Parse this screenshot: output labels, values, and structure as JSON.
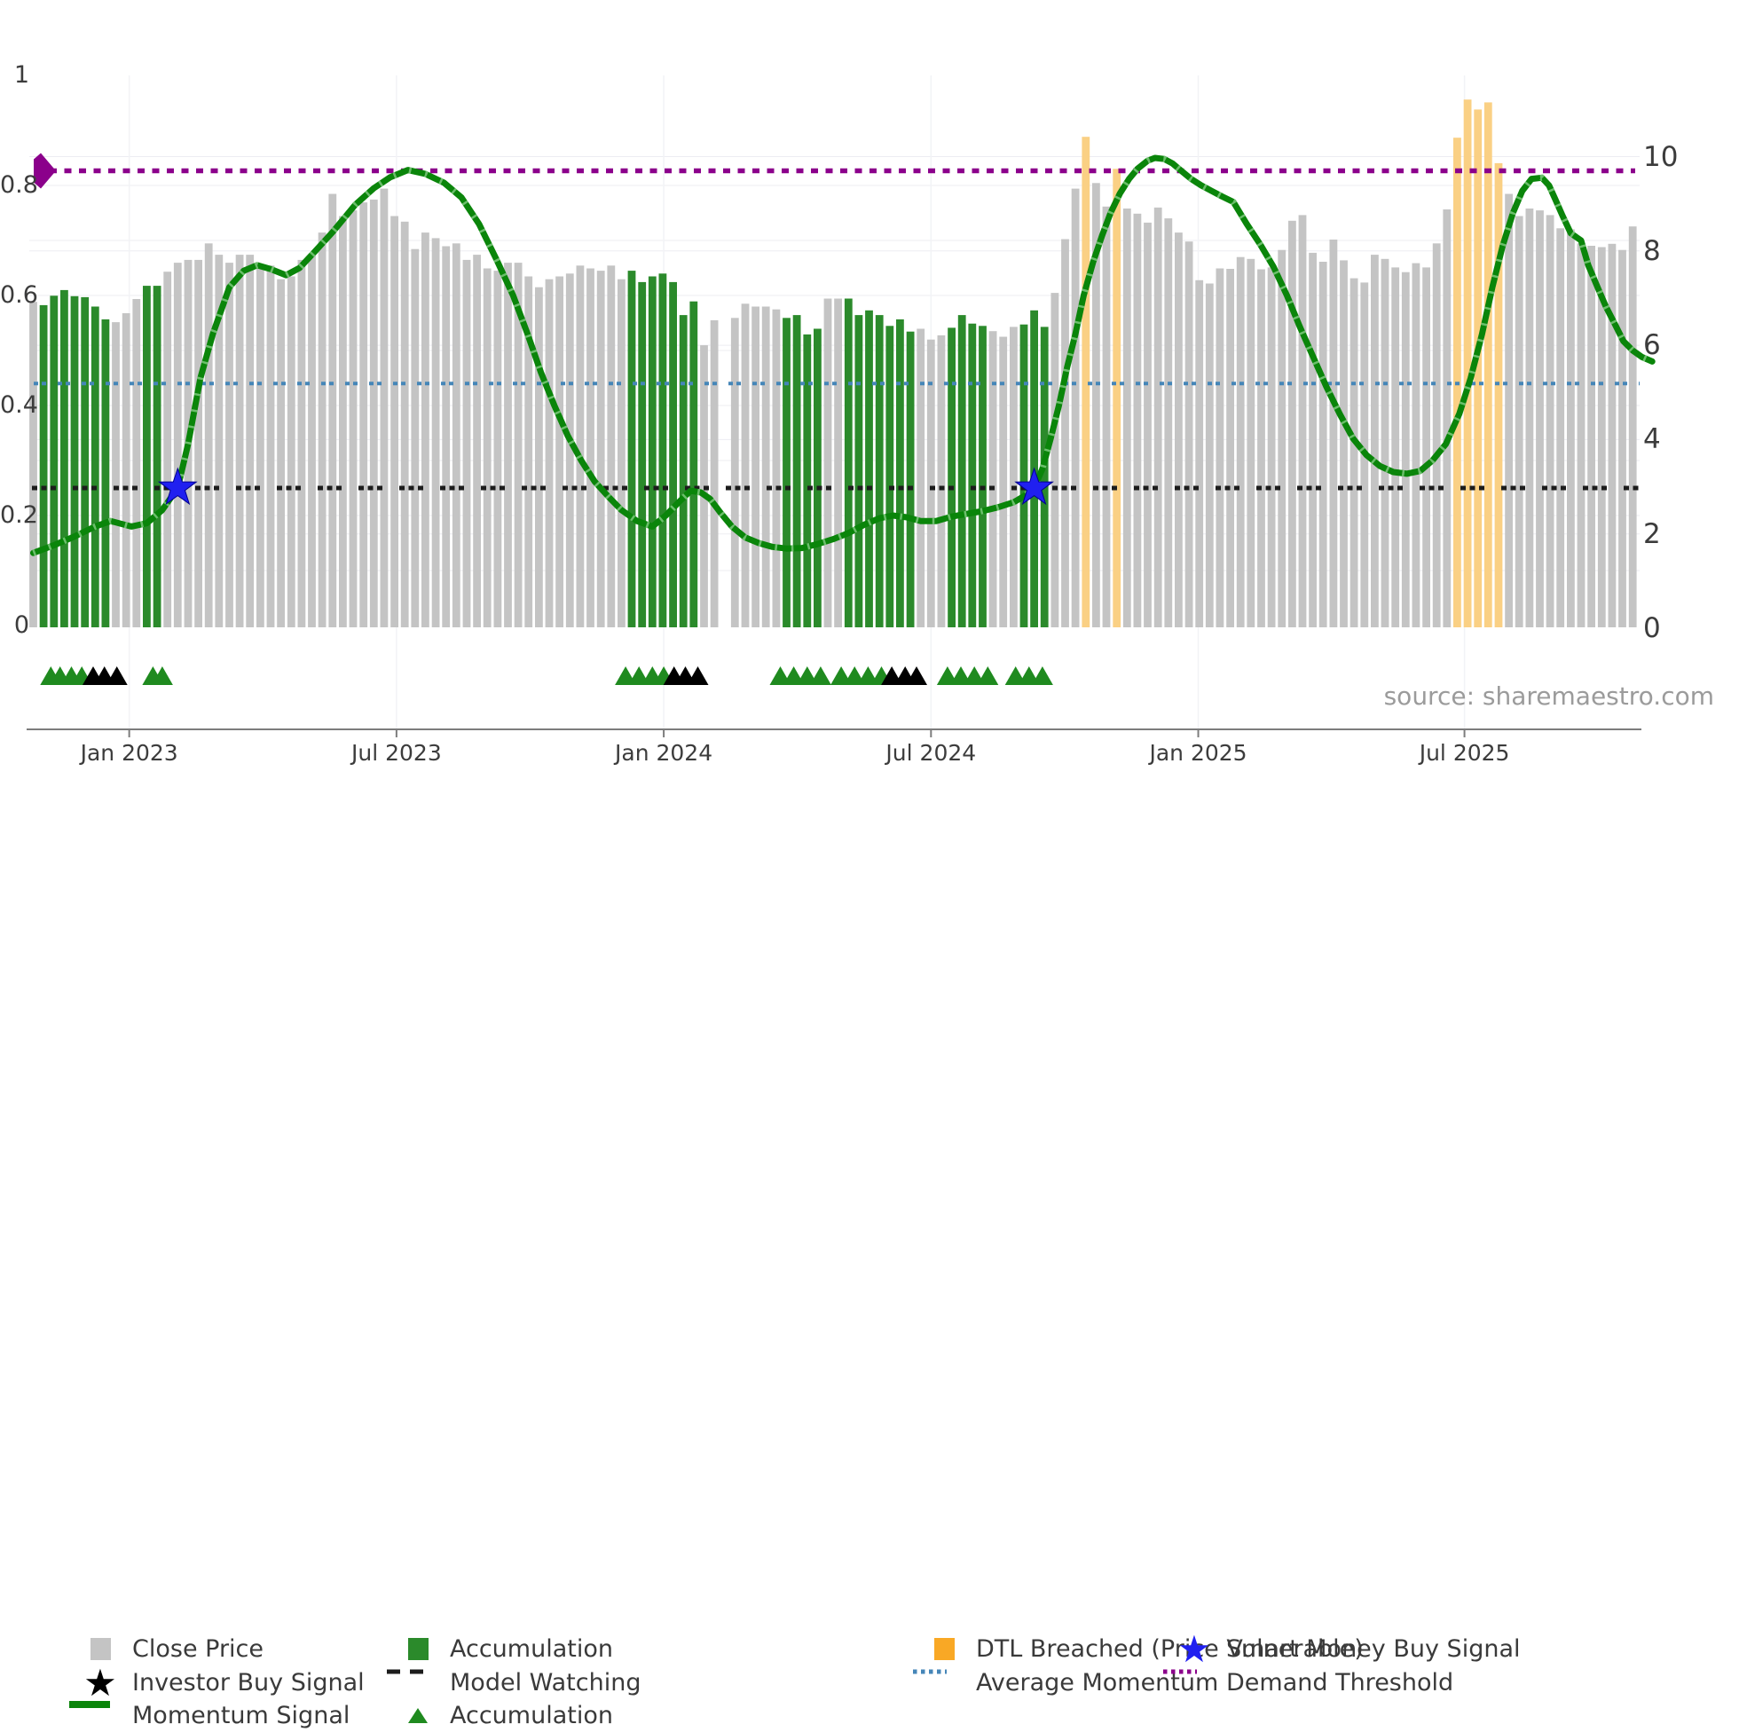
{
  "source_note": "source: sharemaestro.com",
  "colors": {
    "close_price": "#c4c4c4",
    "accumulation": "#2b8a2b",
    "accumulation_triangle": "#1f8a1f",
    "dtl_breached": "#f9a825",
    "dtl_bar": "#fad084",
    "momentum": "#0a850a",
    "momentum_tick": "#7ec87e",
    "model_watching": "#1c1c1c",
    "average_momentum": "#4586b8",
    "demand_threshold": "#8b008b",
    "smart_money": "#2020f0",
    "investor": "#000000",
    "axis_text": "#3c3c3c",
    "source_text": "#9b9b9b",
    "spine": "#7d7d7d",
    "grid": "#ededf2"
  },
  "chart_data": {
    "type": "bar",
    "title": "",
    "axes": {
      "left": {
        "labels": [
          "1",
          "0.8",
          "0.6",
          "0.4",
          "0.2",
          "0"
        ],
        "values": [
          1,
          0.8,
          0.6,
          0.4,
          0.2,
          0
        ],
        "range": [
          0,
          1
        ]
      },
      "right": {
        "labels": [
          "10",
          "8",
          "6",
          "4",
          "2",
          "0"
        ],
        "values": [
          10,
          8,
          6,
          4,
          2,
          0
        ],
        "range": [
          0,
          11.7
        ]
      },
      "x": {
        "labels": [
          "Jan 2023",
          "Jul 2023",
          "Jan 2024",
          "Jul 2024",
          "Jan 2025",
          "Jul 2025"
        ],
        "weeks": [
          9.3,
          35.2,
          61.1,
          87.0,
          112.9,
          138.7
        ]
      }
    },
    "grid": {
      "h_left_step": 0.1,
      "h_right_ticks": [
        2,
        4,
        6,
        8,
        10
      ],
      "v_at_x_ticks": true
    },
    "series": {
      "close_price": {
        "name": "Close Price",
        "unit": "price-right-axis",
        "bar_type_key": {
          "c": "close",
          "a": "accumulation",
          "d": "dtl-breached",
          "x": "no-data"
        },
        "types": "caaaaaaacccaacccccccccccccccccccccccccccccccccccccccccccccaaaaaaaccxcccccaaaaccaaaaaaacccaaaacccaaacccdccdccccccccccccccccccccccccccccccccdddddccccccccccccc",
        "values": [
          6.92,
          6.85,
          7.05,
          7.17,
          7.04,
          7.02,
          6.82,
          6.55,
          6.49,
          6.68,
          6.98,
          7.26,
          7.26,
          7.56,
          7.75,
          7.81,
          7.81,
          8.16,
          7.92,
          7.75,
          7.92,
          7.92,
          7.69,
          7.69,
          7.4,
          7.46,
          7.81,
          7.92,
          8.39,
          9.21,
          8.74,
          8.86,
          9.03,
          9.09,
          9.32,
          8.74,
          8.62,
          8.04,
          8.39,
          8.27,
          8.1,
          8.16,
          7.81,
          7.92,
          7.63,
          7.58,
          7.75,
          7.75,
          7.46,
          7.23,
          7.4,
          7.46,
          7.52,
          7.69,
          7.63,
          7.58,
          7.69,
          7.4,
          7.58,
          7.34,
          7.46,
          7.52,
          7.34,
          6.64,
          6.93,
          6.0,
          6.53,
          0,
          6.58,
          6.88,
          6.82,
          6.82,
          6.76,
          6.58,
          6.64,
          6.23,
          6.35,
          6.99,
          6.99,
          6.99,
          6.64,
          6.74,
          6.64,
          6.41,
          6.55,
          6.29,
          6.35,
          6.12,
          6.21,
          6.37,
          6.64,
          6.46,
          6.41,
          6.3,
          6.18,
          6.39,
          6.44,
          6.74,
          6.39,
          7.11,
          8.25,
          9.32,
          10.42,
          9.44,
          8.94,
          9.74,
          8.9,
          8.79,
          8.6,
          8.92,
          8.69,
          8.39,
          8.2,
          7.38,
          7.31,
          7.63,
          7.62,
          7.87,
          7.83,
          7.61,
          7.65,
          8.02,
          8.64,
          8.76,
          7.96,
          7.77,
          8.24,
          7.8,
          7.42,
          7.33,
          7.92,
          7.83,
          7.65,
          7.55,
          7.74,
          7.65,
          8.16,
          8.88,
          10.4,
          11.21,
          11.0,
          11.15,
          9.86,
          9.21,
          8.74,
          8.9,
          8.86,
          8.76,
          8.48,
          8.46,
          8.16,
          8.11,
          8.08,
          8.15,
          8.02,
          8.52
        ]
      },
      "momentum_signal": {
        "name": "Momentum Signal",
        "unit": "momentum-left-axis",
        "points": [
          [
            0,
            0.132
          ],
          [
            2,
            0.146
          ],
          [
            4,
            0.162
          ],
          [
            6,
            0.18
          ],
          [
            7.5,
            0.19
          ],
          [
            9.5,
            0.18
          ],
          [
            11,
            0.186
          ],
          [
            12.5,
            0.21
          ],
          [
            14,
            0.25
          ],
          [
            15,
            0.33
          ],
          [
            16.2,
            0.45
          ],
          [
            17.4,
            0.53
          ],
          [
            19,
            0.615
          ],
          [
            20.4,
            0.645
          ],
          [
            21.7,
            0.655
          ],
          [
            23,
            0.648
          ],
          [
            24.5,
            0.637
          ],
          [
            25.8,
            0.65
          ],
          [
            27.3,
            0.68
          ],
          [
            29,
            0.715
          ],
          [
            31.2,
            0.765
          ],
          [
            33,
            0.795
          ],
          [
            34.6,
            0.815
          ],
          [
            36.3,
            0.828
          ],
          [
            38,
            0.821
          ],
          [
            39.8,
            0.805
          ],
          [
            41.5,
            0.778
          ],
          [
            43.2,
            0.73
          ],
          [
            44.9,
            0.665
          ],
          [
            46.5,
            0.6
          ],
          [
            47.9,
            0.53
          ],
          [
            49.2,
            0.46
          ],
          [
            50.5,
            0.4
          ],
          [
            51.8,
            0.345
          ],
          [
            53.1,
            0.3
          ],
          [
            54.4,
            0.262
          ],
          [
            55.7,
            0.235
          ],
          [
            57,
            0.21
          ],
          [
            58.5,
            0.19
          ],
          [
            60,
            0.18
          ],
          [
            61.3,
            0.2
          ],
          [
            62.6,
            0.225
          ],
          [
            63.7,
            0.245
          ],
          [
            64.7,
            0.242
          ],
          [
            65.6,
            0.23
          ],
          [
            66.6,
            0.205
          ],
          [
            67.7,
            0.18
          ],
          [
            69,
            0.16
          ],
          [
            70.3,
            0.15
          ],
          [
            71.6,
            0.143
          ],
          [
            73,
            0.14
          ],
          [
            74.5,
            0.141
          ],
          [
            76,
            0.148
          ],
          [
            77.5,
            0.157
          ],
          [
            79,
            0.168
          ],
          [
            80.5,
            0.183
          ],
          [
            82,
            0.195
          ],
          [
            83.3,
            0.2
          ],
          [
            84.6,
            0.197
          ],
          [
            86,
            0.19
          ],
          [
            87.5,
            0.19
          ],
          [
            89,
            0.198
          ],
          [
            90.5,
            0.203
          ],
          [
            92,
            0.208
          ],
          [
            93.5,
            0.215
          ],
          [
            95,
            0.224
          ],
          [
            96,
            0.235
          ],
          [
            97,
            0.25
          ],
          [
            97.8,
            0.285
          ],
          [
            98.6,
            0.34
          ],
          [
            99.4,
            0.4
          ],
          [
            100.2,
            0.47
          ],
          [
            101,
            0.53
          ],
          [
            101.8,
            0.6
          ],
          [
            102.7,
            0.66
          ],
          [
            103.6,
            0.71
          ],
          [
            104.4,
            0.75
          ],
          [
            105.3,
            0.785
          ],
          [
            106.2,
            0.812
          ],
          [
            107,
            0.83
          ],
          [
            108,
            0.845
          ],
          [
            108.7,
            0.85
          ],
          [
            109.6,
            0.848
          ],
          [
            110.4,
            0.84
          ],
          [
            111.3,
            0.826
          ],
          [
            112.2,
            0.812
          ],
          [
            113.2,
            0.8
          ],
          [
            114.2,
            0.79
          ],
          [
            115.2,
            0.78
          ],
          [
            116.3,
            0.77
          ],
          [
            117.6,
            0.73
          ],
          [
            118.9,
            0.693
          ],
          [
            120.2,
            0.652
          ],
          [
            121.5,
            0.6
          ],
          [
            122.7,
            0.545
          ],
          [
            124,
            0.49
          ],
          [
            125.3,
            0.435
          ],
          [
            126.6,
            0.385
          ],
          [
            127.9,
            0.34
          ],
          [
            129.2,
            0.31
          ],
          [
            130.5,
            0.29
          ],
          [
            131.8,
            0.279
          ],
          [
            133.1,
            0.276
          ],
          [
            134.4,
            0.281
          ],
          [
            135.6,
            0.3
          ],
          [
            136.9,
            0.33
          ],
          [
            138.2,
            0.385
          ],
          [
            139.3,
            0.45
          ],
          [
            140.4,
            0.53
          ],
          [
            141.4,
            0.615
          ],
          [
            142.4,
            0.69
          ],
          [
            143.4,
            0.75
          ],
          [
            144.3,
            0.79
          ],
          [
            145.2,
            0.812
          ],
          [
            146.2,
            0.814
          ],
          [
            146.9,
            0.8
          ],
          [
            147.5,
            0.775
          ],
          [
            148.2,
            0.745
          ],
          [
            149,
            0.713
          ],
          [
            150,
            0.7
          ],
          [
            150.7,
            0.655
          ],
          [
            151.6,
            0.615
          ],
          [
            152.4,
            0.58
          ],
          [
            153.3,
            0.547
          ],
          [
            154.1,
            0.517
          ],
          [
            155,
            0.5
          ],
          [
            155.9,
            0.488
          ],
          [
            156.9,
            0.48
          ]
        ]
      }
    },
    "lines": {
      "demand_threshold": {
        "name": "Demand Threshold",
        "axis": "price-right",
        "value": 9.7
      },
      "average_momentum": {
        "name": "Average Momentum",
        "axis": "momentum-left",
        "value": 0.44
      },
      "model_watching": {
        "name": "Model Watching",
        "axis": "momentum-left",
        "value": 0.25
      }
    },
    "markers": {
      "smart_money_buy_signals": [
        {
          "week": 14,
          "momentum": 0.25
        },
        {
          "week": 97,
          "momentum": 0.25
        }
      ],
      "accumulation_triangle_weeks": [
        1.7,
        2.6,
        3.7,
        4.7,
        11.6,
        12.5,
        57.4,
        58.7,
        60.0,
        61.1,
        72.4,
        73.7,
        75.0,
        76.3,
        78.3,
        79.6,
        80.9,
        82.2,
        88.6,
        89.9,
        91.2,
        92.5,
        95.2,
        96.5,
        97.8
      ],
      "investor_triangle_weeks": [
        5.8,
        6.9,
        8.1,
        62.1,
        63.2,
        64.4,
        83.2,
        84.5,
        85.6
      ]
    }
  },
  "legend": {
    "columns": [
      {
        "items": [
          {
            "swatch": "square",
            "color_key": "close_price",
            "label": "Close Price"
          },
          {
            "swatch": "star",
            "color_key": "investor",
            "label": "Investor Buy Signal"
          },
          {
            "swatch": "line",
            "color_key": "momentum",
            "label": "Momentum Signal"
          }
        ]
      },
      {
        "items": [
          {
            "swatch": "square",
            "color_key": "accumulation",
            "label": "Accumulation"
          },
          {
            "swatch": "dashes",
            "color_key": "model_watching",
            "label": "Model Watching"
          },
          {
            "swatch": "triangle",
            "color_key": "accumulation_triangle",
            "label": "Accumulation"
          }
        ]
      },
      {
        "items": [
          {
            "swatch": "square",
            "color_key": "dtl_breached",
            "label": "DTL Breached (Price Vulnerable)"
          },
          {
            "swatch": "dots",
            "color_key": "average_momentum",
            "label": "Average Momentum"
          }
        ]
      },
      {
        "items": [
          {
            "swatch": "star",
            "color_key": "smart_money",
            "label": "Smart Money Buy Signal"
          },
          {
            "swatch": "dots",
            "color_key": "demand_threshold",
            "label": "Demand Threshold"
          }
        ]
      }
    ]
  }
}
